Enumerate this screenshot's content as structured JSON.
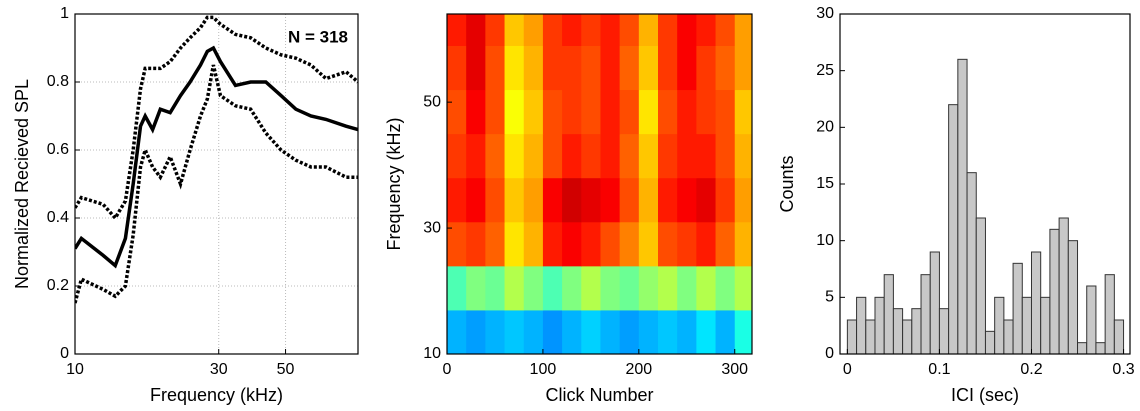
{
  "chart_data": [
    {
      "type": "line",
      "ylabel": "Normalized Recieved SPL",
      "xlabel": "Frequency (kHz)",
      "annotation": "N = 318",
      "xscale": "log",
      "xlim": [
        10,
        87
      ],
      "xticks": [
        10,
        30,
        50
      ],
      "ylim": [
        0,
        1
      ],
      "yticks": [
        0,
        0.2,
        0.4,
        0.6,
        0.8,
        1
      ],
      "grid": true,
      "x": [
        10,
        10.5,
        12.4,
        13.6,
        14.7,
        15.6,
        16.5,
        17.1,
        18.1,
        19.2,
        20.7,
        22.4,
        24.1,
        26.1,
        27.5,
        28.8,
        30.4,
        34.1,
        38.3,
        43,
        48.3,
        54.1,
        60.7,
        68.1,
        79.4,
        87
      ],
      "series": [
        {
          "color": "#000000",
          "style": "solid",
          "values": [
            0.31,
            0.34,
            0.29,
            0.26,
            0.34,
            0.5,
            0.67,
            0.7,
            0.66,
            0.72,
            0.71,
            0.76,
            0.8,
            0.85,
            0.89,
            0.9,
            0.86,
            0.79,
            0.8,
            0.8,
            0.76,
            0.72,
            0.7,
            0.69,
            0.67,
            0.66
          ]
        },
        {
          "color": "#000000",
          "style": "dotted",
          "values": [
            0.43,
            0.46,
            0.44,
            0.4,
            0.45,
            0.6,
            0.78,
            0.84,
            0.84,
            0.84,
            0.86,
            0.9,
            0.93,
            0.96,
            0.99,
            0.99,
            0.97,
            0.94,
            0.93,
            0.9,
            0.88,
            0.87,
            0.85,
            0.81,
            0.83,
            0.8
          ]
        },
        {
          "color": "#000000",
          "style": "dotted",
          "values": [
            0.15,
            0.22,
            0.19,
            0.17,
            0.2,
            0.35,
            0.55,
            0.6,
            0.55,
            0.52,
            0.58,
            0.5,
            0.6,
            0.7,
            0.75,
            0.85,
            0.76,
            0.73,
            0.72,
            0.65,
            0.6,
            0.57,
            0.55,
            0.55,
            0.52,
            0.52
          ]
        }
      ]
    },
    {
      "type": "heatmap",
      "ylabel": "Frequency (kHz)",
      "xlabel": "Click Number",
      "xlim": [
        0,
        318
      ],
      "xticks": [
        0,
        100,
        200,
        300
      ],
      "ylim": [
        10,
        64
      ],
      "yticks": [
        10,
        30,
        50
      ],
      "xbins": [
        0,
        20,
        40,
        60,
        80,
        100,
        120,
        140,
        160,
        180,
        200,
        220,
        240,
        260,
        280,
        300,
        318
      ],
      "ybins": [
        10,
        17,
        24,
        31,
        38,
        45,
        52,
        59,
        64
      ],
      "values": [
        [
          0.3,
          0.28,
          0.3,
          0.32,
          0.3,
          0.27,
          0.3,
          0.33,
          0.3,
          0.28,
          0.3,
          0.32,
          0.3,
          0.35,
          0.3,
          0.4
        ],
        [
          0.45,
          0.5,
          0.48,
          0.55,
          0.5,
          0.45,
          0.5,
          0.55,
          0.5,
          0.48,
          0.52,
          0.55,
          0.5,
          0.55,
          0.5,
          0.55
        ],
        [
          0.8,
          0.82,
          0.78,
          0.65,
          0.7,
          0.85,
          0.88,
          0.85,
          0.8,
          0.75,
          0.68,
          0.8,
          0.82,
          0.85,
          0.78,
          0.7
        ],
        [
          0.85,
          0.88,
          0.8,
          0.68,
          0.72,
          0.88,
          0.92,
          0.9,
          0.88,
          0.8,
          0.7,
          0.85,
          0.88,
          0.9,
          0.82,
          0.72
        ],
        [
          0.82,
          0.85,
          0.78,
          0.65,
          0.7,
          0.8,
          0.85,
          0.82,
          0.85,
          0.78,
          0.68,
          0.82,
          0.85,
          0.85,
          0.8,
          0.7
        ],
        [
          0.8,
          0.88,
          0.8,
          0.62,
          0.68,
          0.8,
          0.82,
          0.8,
          0.85,
          0.8,
          0.65,
          0.8,
          0.85,
          0.82,
          0.8,
          0.68
        ],
        [
          0.82,
          0.9,
          0.8,
          0.65,
          0.7,
          0.82,
          0.82,
          0.8,
          0.85,
          0.78,
          0.68,
          0.82,
          0.88,
          0.82,
          0.78,
          0.72
        ],
        [
          0.85,
          0.9,
          0.82,
          0.68,
          0.72,
          0.82,
          0.85,
          0.82,
          0.85,
          0.8,
          0.7,
          0.82,
          0.88,
          0.85,
          0.8,
          0.72
        ]
      ]
    },
    {
      "type": "histogram",
      "ylabel": "Counts",
      "xlabel": "ICI (sec)",
      "color": "#c8c8c8",
      "edgecolor": "#333333",
      "xlim": [
        -0.008,
        0.307
      ],
      "xticks": [
        0,
        0.1,
        0.2,
        0.3
      ],
      "ylim": [
        0,
        30
      ],
      "yticks": [
        0,
        5,
        10,
        15,
        20,
        25,
        30
      ],
      "bins": [
        0,
        0.01,
        0.02,
        0.03,
        0.04,
        0.05,
        0.06,
        0.07,
        0.08,
        0.09,
        0.1,
        0.11,
        0.12,
        0.13,
        0.14,
        0.15,
        0.16,
        0.17,
        0.18,
        0.19,
        0.2,
        0.21,
        0.22,
        0.23,
        0.24,
        0.25,
        0.26,
        0.27,
        0.28,
        0.29,
        0.3
      ],
      "values": [
        3,
        5,
        3,
        5,
        7,
        4,
        3,
        4,
        7,
        9,
        4,
        22,
        26,
        16,
        12,
        2,
        5,
        3,
        8,
        5,
        9,
        5,
        11,
        12,
        10,
        1,
        6,
        1,
        7,
        3
      ]
    }
  ]
}
